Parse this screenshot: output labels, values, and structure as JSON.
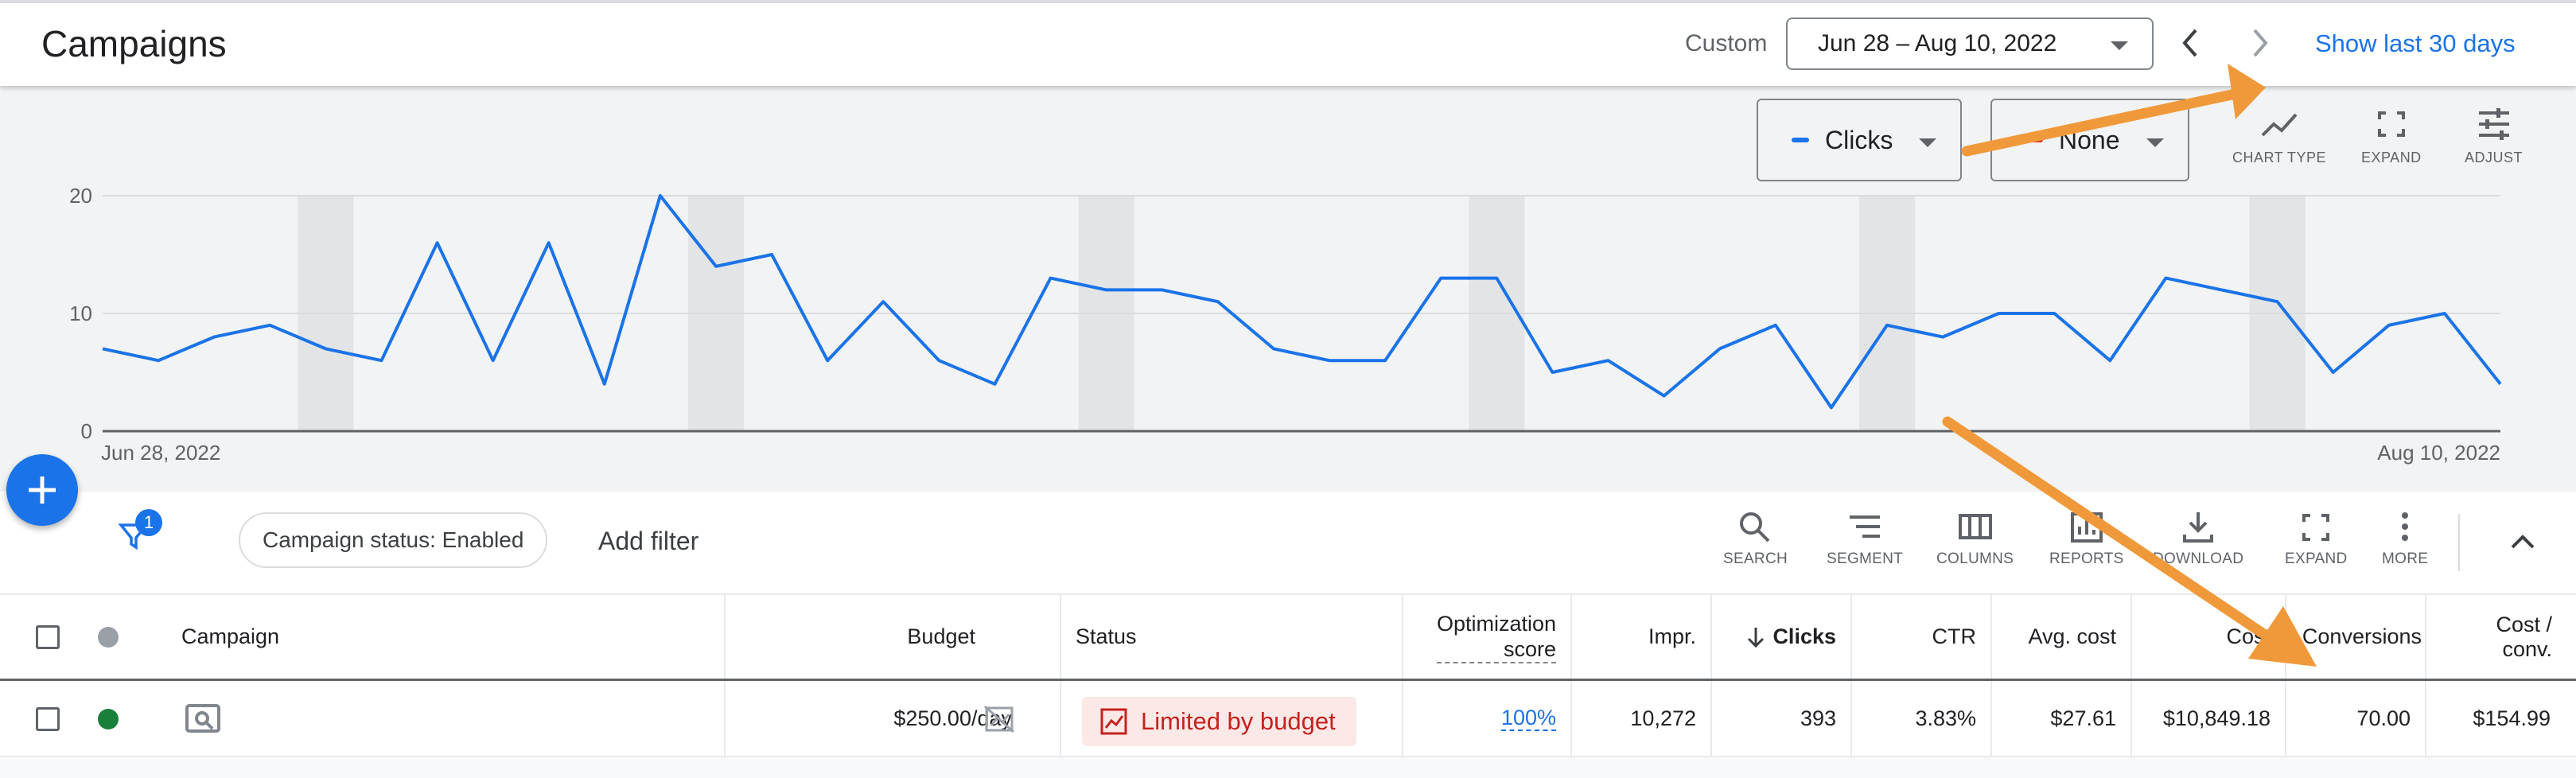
{
  "header": {
    "title": "Campaigns",
    "range_label": "Custom",
    "date_range": "Jun 28 – Aug 10, 2022",
    "show_last": "Show last 30 days"
  },
  "chart_controls": {
    "metric_1": {
      "label": "Clicks",
      "color": "#1a73e8"
    },
    "metric_2": {
      "label": "None",
      "color": "#d93025"
    },
    "tools": [
      "CHART TYPE",
      "EXPAND",
      "ADJUST"
    ]
  },
  "chart_data": {
    "type": "line",
    "title": "",
    "xlabel": "",
    "ylabel": "",
    "x_start_label": "Jun 28, 2022",
    "x_end_label": "Aug 10, 2022",
    "yticks": [
      0,
      10,
      20
    ],
    "ylim": [
      0,
      20
    ],
    "series": [
      {
        "color": "#1a73e8",
        "values": [
          7,
          6,
          8,
          9,
          7,
          6,
          16,
          6,
          16,
          4,
          20,
          14,
          15,
          6,
          11,
          6,
          4,
          13,
          12,
          12,
          11,
          7,
          6,
          6,
          13,
          13,
          5,
          6,
          3,
          7,
          9,
          2,
          9,
          8,
          10,
          10,
          6,
          13,
          12,
          11,
          5,
          9,
          10,
          4
        ]
      }
    ],
    "weekend_bands": [
      4,
      11,
      18,
      25,
      32,
      39
    ]
  },
  "filter_bar": {
    "filter_count": "1",
    "chip": "Campaign status: Enabled",
    "add_filter": "Add filter",
    "tools": [
      "SEARCH",
      "SEGMENT",
      "COLUMNS",
      "REPORTS",
      "DOWNLOAD",
      "EXPAND",
      "MORE"
    ]
  },
  "table": {
    "columns": {
      "campaign": "Campaign",
      "budget": "Budget",
      "status": "Status",
      "optimization_score": [
        "Optimization",
        "score"
      ],
      "impr": "Impr.",
      "clicks": "Clicks",
      "ctr": "CTR",
      "avg_cost": "Avg. cost",
      "cost": "Cost",
      "conversions": "Conversions",
      "cost_conv": [
        "Cost /",
        "conv."
      ]
    },
    "row": {
      "budget": "$250.00/day",
      "status": "Limited by budget",
      "optimization_score": "100%",
      "impr": "10,272",
      "clicks": "393",
      "ctr": "3.83%",
      "avg_cost": "$27.61",
      "cost": "$10,849.18",
      "conversions": "70.00",
      "cost_conv": "$154.99"
    }
  }
}
